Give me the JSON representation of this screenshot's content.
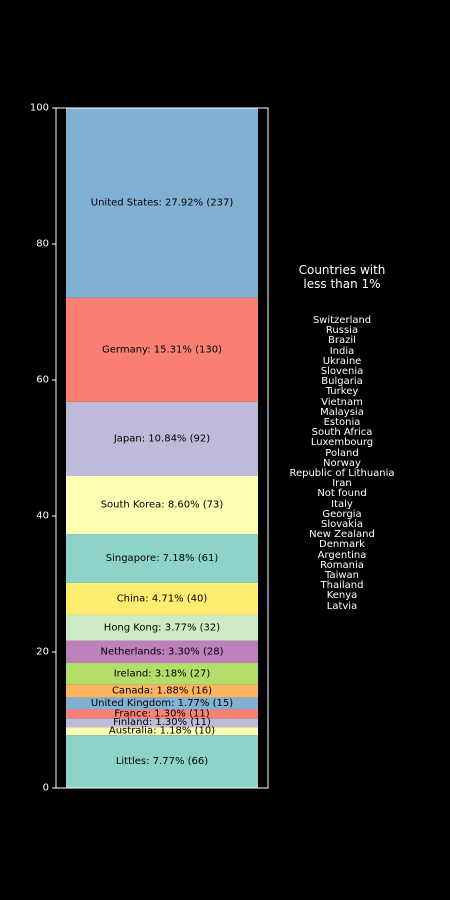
{
  "chart_data": {
    "type": "bar",
    "stacked": true,
    "ylim": [
      0,
      100
    ],
    "yticks": [
      0,
      20,
      40,
      60,
      80,
      100
    ],
    "grid": false,
    "xlabel": "",
    "ylabel": "",
    "segments": [
      {
        "label": "Littles: 7.77% (66)",
        "name": "Littles",
        "value": 7.77,
        "count": 66,
        "color": "#8dd3c7"
      },
      {
        "label": "Australia: 1.18% (10)",
        "name": "Australia",
        "value": 1.18,
        "count": 10,
        "color": "#ffffb3"
      },
      {
        "label": "Finland: 1.30% (11)",
        "name": "Finland",
        "value": 1.3,
        "count": 11,
        "color": "#bebada"
      },
      {
        "label": "France: 1.30% (11)",
        "name": "France",
        "value": 1.3,
        "count": 11,
        "color": "#fb8072"
      },
      {
        "label": "United Kingdom: 1.77% (15)",
        "name": "United Kingdom",
        "value": 1.77,
        "count": 15,
        "color": "#80b1d3"
      },
      {
        "label": "Canada: 1.88% (16)",
        "name": "Canada",
        "value": 1.88,
        "count": 16,
        "color": "#fdb462"
      },
      {
        "label": "Ireland: 3.18% (27)",
        "name": "Ireland",
        "value": 3.18,
        "count": 27,
        "color": "#b3de69"
      },
      {
        "label": "Netherlands: 3.30% (28)",
        "name": "Netherlands",
        "value": 3.3,
        "count": 28,
        "color": "#bc80bd"
      },
      {
        "label": "Hong Kong: 3.77% (32)",
        "name": "Hong Kong",
        "value": 3.77,
        "count": 32,
        "color": "#ccebc5"
      },
      {
        "label": "China: 4.71% (40)",
        "name": "China",
        "value": 4.71,
        "count": 40,
        "color": "#ffed6f"
      },
      {
        "label": "Singapore: 7.18% (61)",
        "name": "Singapore",
        "value": 7.18,
        "count": 61,
        "color": "#8dd3c7"
      },
      {
        "label": "South Korea: 8.60% (73)",
        "name": "South Korea",
        "value": 8.6,
        "count": 73,
        "color": "#ffffb3"
      },
      {
        "label": "Japan: 10.84% (92)",
        "name": "Japan",
        "value": 10.84,
        "count": 92,
        "color": "#bebada"
      },
      {
        "label": "Germany: 15.31% (130)",
        "name": "Germany",
        "value": 15.31,
        "count": 130,
        "color": "#fb8072"
      },
      {
        "label": "United States: 27.92% (237)",
        "name": "United States",
        "value": 27.92,
        "count": 237,
        "color": "#80b1d3"
      }
    ]
  },
  "side_panel": {
    "title": "Countries with\nless than 1%",
    "countries": [
      "Switzerland",
      "Russia",
      "Brazil",
      "India",
      "Ukraine",
      "Slovenia",
      "Bulgaria",
      "Turkey",
      "Vietnam",
      "Malaysia",
      "Estonia",
      "South Africa",
      "Luxembourg",
      "Poland",
      "Norway",
      "Republic of Lithuania",
      "Iran",
      "Not found",
      "Italy",
      "Georgia",
      "Slovakia",
      "New Zealand",
      "Denmark",
      "Argentina",
      "Romania",
      "Taiwan",
      "Thailand",
      "Kenya",
      "Latvia"
    ]
  }
}
